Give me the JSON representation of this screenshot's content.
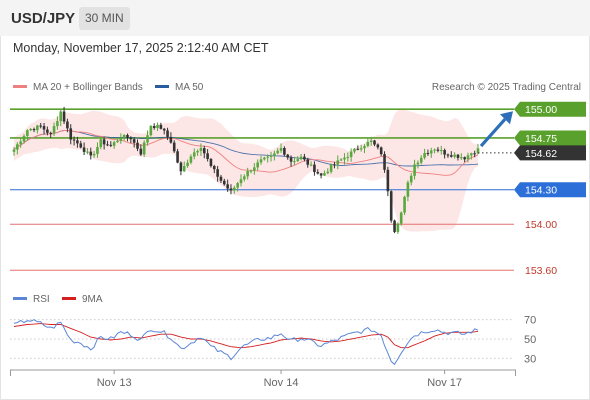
{
  "header": {
    "symbol": "USD/JPY",
    "timeframe": "30 MIN"
  },
  "datetime": "Monday, November 17, 2025 2:12:40 AM CET",
  "colors": {
    "ma20": "#f08080",
    "ma50": "#2a5d9f",
    "bollinger_fill": "#fde6e6",
    "candle_up": "#58a83e",
    "candle_down": "#333333",
    "resistance": "#5aa02c",
    "support_blue": "#2d6fd8",
    "support_red": "#e57070",
    "rsi": "#5b86d6",
    "rsi_ma": "#d42020",
    "forecast_arrow": "#2d6fb8"
  },
  "chart_data": [
    {
      "type": "candlestick",
      "legend": [
        {
          "name": "MA 20 + Bollinger Bands",
          "color": "#f08080"
        },
        {
          "name": "MA 50",
          "color": "#2a5d9f"
        }
      ],
      "watermark": "Research © 2025 Trading Central",
      "ylim": [
        153.55,
        155.08
      ],
      "levels": [
        {
          "value": 155.0,
          "label": "155.00",
          "style": "resistance-badge"
        },
        {
          "value": 154.75,
          "label": "154.75",
          "style": "resistance-badge"
        },
        {
          "value": 154.62,
          "label": "154.62",
          "style": "last-price-badge"
        },
        {
          "value": 154.3,
          "label": "154.30",
          "style": "support-badge"
        },
        {
          "value": 154.0,
          "label": "154.00",
          "style": "support-text"
        },
        {
          "value": 153.6,
          "label": "153.60",
          "style": "support-text"
        }
      ],
      "close_path": [
        [
          0,
          154.65
        ],
        [
          4,
          154.82
        ],
        [
          8,
          154.85
        ],
        [
          11,
          154.78
        ],
        [
          14,
          154.98
        ],
        [
          17,
          154.75
        ],
        [
          20,
          154.68
        ],
        [
          23,
          154.58
        ],
        [
          26,
          154.72
        ],
        [
          29,
          154.68
        ],
        [
          32,
          154.76
        ],
        [
          35,
          154.75
        ],
        [
          38,
          154.62
        ],
        [
          41,
          154.86
        ],
        [
          44,
          154.84
        ],
        [
          47,
          154.72
        ],
        [
          50,
          154.45
        ],
        [
          53,
          154.6
        ],
        [
          56,
          154.68
        ],
        [
          59,
          154.5
        ],
        [
          62,
          154.38
        ],
        [
          65,
          154.28
        ],
        [
          68,
          154.4
        ],
        [
          71,
          154.48
        ],
        [
          74,
          154.55
        ],
        [
          77,
          154.58
        ],
        [
          80,
          154.66
        ],
        [
          83,
          154.55
        ],
        [
          86,
          154.58
        ],
        [
          89,
          154.5
        ],
        [
          92,
          154.42
        ],
        [
          95,
          154.5
        ],
        [
          98,
          154.56
        ],
        [
          101,
          154.62
        ],
        [
          104,
          154.68
        ],
        [
          107,
          154.72
        ],
        [
          110,
          154.62
        ],
        [
          112,
          154.3
        ],
        [
          113,
          154.05
        ],
        [
          114,
          153.95
        ],
        [
          116,
          154.1
        ],
        [
          118,
          154.35
        ],
        [
          120,
          154.52
        ],
        [
          123,
          154.62
        ],
        [
          126,
          154.66
        ],
        [
          129,
          154.62
        ],
        [
          132,
          154.6
        ],
        [
          135,
          154.58
        ],
        [
          137,
          154.62
        ],
        [
          139,
          154.65
        ]
      ],
      "x_ticks": [
        {
          "label": "Nov 13",
          "at": 30
        },
        {
          "label": "Nov 14",
          "at": 80
        },
        {
          "label": "Nov 17",
          "at": 129
        }
      ],
      "forecast_arrow": {
        "from": 154.68,
        "to": 155.0
      }
    },
    {
      "type": "line",
      "legend": [
        {
          "name": "RSI",
          "color": "#5b86d6"
        },
        {
          "name": "9MA",
          "color": "#d42020"
        }
      ],
      "ylim": [
        22,
        78
      ],
      "y_ticks": [
        70,
        50,
        30
      ],
      "series": [
        {
          "name": "RSI",
          "values": [
            [
              0,
              64
            ],
            [
              4,
              70
            ],
            [
              8,
              66
            ],
            [
              11,
              61
            ],
            [
              14,
              67
            ],
            [
              17,
              49
            ],
            [
              20,
              46
            ],
            [
              23,
              40
            ],
            [
              26,
              52
            ],
            [
              29,
              50
            ],
            [
              32,
              57
            ],
            [
              35,
              55
            ],
            [
              38,
              49
            ],
            [
              41,
              61
            ],
            [
              44,
              58
            ],
            [
              47,
              52
            ],
            [
              50,
              40
            ],
            [
              53,
              46
            ],
            [
              56,
              53
            ],
            [
              59,
              42
            ],
            [
              62,
              36
            ],
            [
              65,
              31
            ],
            [
              68,
              41
            ],
            [
              71,
              46
            ],
            [
              74,
              50
            ],
            [
              77,
              51
            ],
            [
              80,
              56
            ],
            [
              83,
              48
            ],
            [
              86,
              51
            ],
            [
              89,
              47
            ],
            [
              92,
              43
            ],
            [
              95,
              47
            ],
            [
              98,
              51
            ],
            [
              101,
              55
            ],
            [
              104,
              58
            ],
            [
              107,
              60
            ],
            [
              110,
              54
            ],
            [
              112,
              36
            ],
            [
              113,
              28
            ],
            [
              114,
              25
            ],
            [
              116,
              37
            ],
            [
              118,
              47
            ],
            [
              120,
              54
            ],
            [
              123,
              58
            ],
            [
              126,
              60
            ],
            [
              129,
              57
            ],
            [
              132,
              56
            ],
            [
              135,
              55
            ],
            [
              137,
              58
            ],
            [
              139,
              59
            ]
          ]
        },
        {
          "name": "9MA",
          "values": [
            [
              0,
              63
            ],
            [
              4,
              65
            ],
            [
              8,
              66
            ],
            [
              11,
              65
            ],
            [
              14,
              65
            ],
            [
              17,
              61
            ],
            [
              20,
              57
            ],
            [
              23,
              52
            ],
            [
              26,
              50
            ],
            [
              29,
              49
            ],
            [
              32,
              50
            ],
            [
              35,
              52
            ],
            [
              38,
              51
            ],
            [
              41,
              53
            ],
            [
              44,
              55
            ],
            [
              47,
              55
            ],
            [
              50,
              52
            ],
            [
              53,
              50
            ],
            [
              56,
              50
            ],
            [
              59,
              48
            ],
            [
              62,
              45
            ],
            [
              65,
              42
            ],
            [
              68,
              41
            ],
            [
              71,
              42
            ],
            [
              74,
              44
            ],
            [
              77,
              46
            ],
            [
              80,
              49
            ],
            [
              83,
              50
            ],
            [
              86,
              51
            ],
            [
              89,
              50
            ],
            [
              92,
              48
            ],
            [
              95,
              47
            ],
            [
              98,
              48
            ],
            [
              101,
              50
            ],
            [
              104,
              52
            ],
            [
              107,
              54
            ],
            [
              110,
              55
            ],
            [
              112,
              52
            ],
            [
              113,
              48
            ],
            [
              114,
              44
            ],
            [
              116,
              41
            ],
            [
              118,
              41
            ],
            [
              120,
              44
            ],
            [
              123,
              48
            ],
            [
              126,
              53
            ],
            [
              129,
              56
            ],
            [
              132,
              57
            ],
            [
              135,
              57
            ],
            [
              137,
              57
            ],
            [
              139,
              58
            ]
          ]
        }
      ]
    }
  ]
}
